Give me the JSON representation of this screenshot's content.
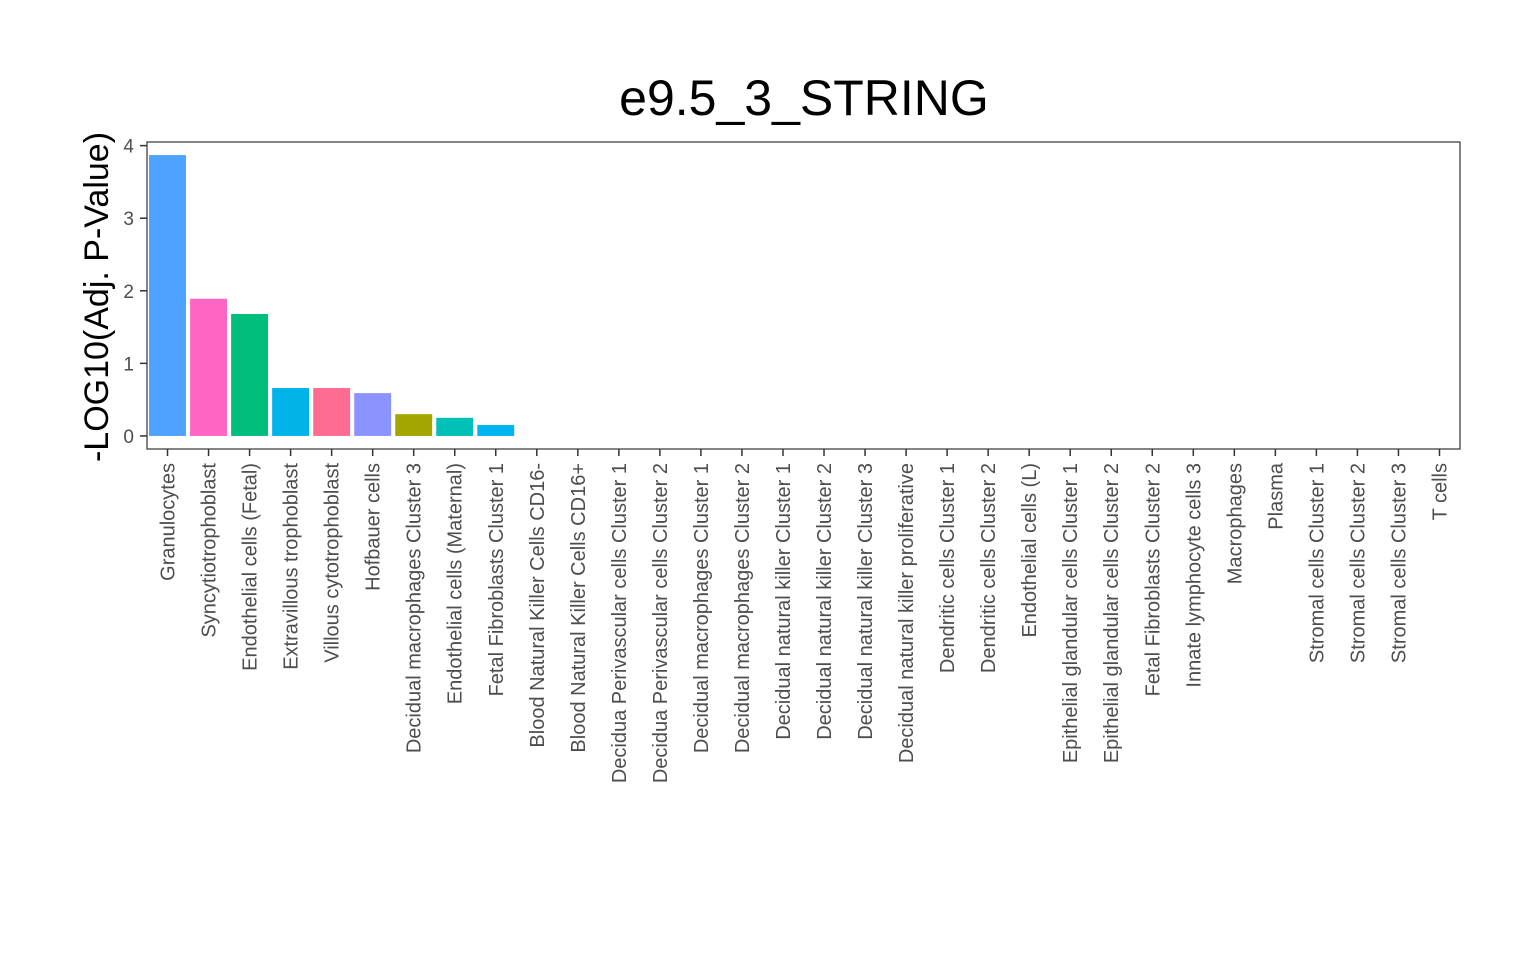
{
  "chart_data": {
    "type": "bar",
    "title": "e9.5_3_STRING",
    "xlabel": "",
    "ylabel": "-LOG10(Adj. P-Value)",
    "ylim": [
      -0.18,
      4.05
    ],
    "yticks": [
      0,
      1,
      2,
      3,
      4
    ],
    "grid": false,
    "legend": "none",
    "categories": [
      "Granulocytes",
      "Syncytiotrophoblast",
      "Endothelial cells (Fetal)",
      "Extravillous trophoblast",
      "Villous cytotrophoblast",
      "Hofbauer cells",
      "Decidual macrophages Cluster 3",
      "Endothelial cells (Maternal)",
      "Fetal Fibroblasts Cluster 1",
      "Blood Natural Killer Cells CD16-",
      "Blood Natural Killer Cells CD16+",
      "Decidua Perivascular cells Cluster 1",
      "Decidua Perivascular cells Cluster 2",
      "Decidual macrophages Cluster 1",
      "Decidual macrophages Cluster 2",
      "Decidual natural killer Cluster 1",
      "Decidual natural killer Cluster 2",
      "Decidual natural killer Cluster 3",
      "Decidual natural killer proliferative",
      "Dendritic cells Cluster 1",
      "Dendritic cells Cluster 2",
      "Endothelial cells (L)",
      "Epithelial glandular cells Cluster 1",
      "Epithelial glandular cells Cluster 2",
      "Fetal Fibroblasts Cluster 2",
      "Innate lymphocyte cells 3",
      "Macrophages",
      "Plasma",
      "Stromal cells Cluster 1",
      "Stromal cells Cluster 2",
      "Stromal cells Cluster 3",
      "T cells"
    ],
    "values": [
      3.87,
      1.89,
      1.68,
      0.66,
      0.66,
      0.59,
      0.3,
      0.25,
      0.15,
      0,
      0,
      0,
      0,
      0,
      0,
      0,
      0,
      0,
      0,
      0,
      0,
      0,
      0,
      0,
      0,
      0,
      0,
      0,
      0,
      0,
      0,
      0
    ],
    "colors": [
      "#4DA3FF",
      "#FF66C4",
      "#00BF7D",
      "#00B4EA",
      "#FF6C91",
      "#8B93FF",
      "#A3A500",
      "#00C0B8",
      "#00B4EF"
    ]
  }
}
